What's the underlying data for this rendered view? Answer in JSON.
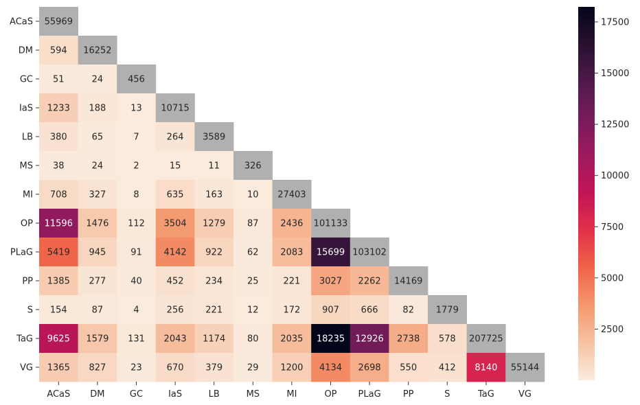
{
  "chart_data": {
    "type": "heatmap",
    "title": "",
    "xlabel": "",
    "ylabel": "",
    "categories": [
      "ACaS",
      "DM",
      "GC",
      "IaS",
      "LB",
      "MS",
      "MI",
      "OP",
      "PLaG",
      "PP",
      "S",
      "TaG",
      "VG"
    ],
    "rows": [
      [
        55969
      ],
      [
        594,
        16252
      ],
      [
        51,
        24,
        456
      ],
      [
        1233,
        188,
        13,
        10715
      ],
      [
        380,
        65,
        7,
        264,
        3589
      ],
      [
        38,
        24,
        2,
        15,
        11,
        326
      ],
      [
        708,
        327,
        8,
        635,
        163,
        10,
        27403
      ],
      [
        11596,
        1476,
        112,
        3504,
        1279,
        87,
        2436,
        101133
      ],
      [
        5419,
        945,
        91,
        4142,
        922,
        62,
        2083,
        15699,
        103102
      ],
      [
        1385,
        277,
        40,
        452,
        234,
        25,
        221,
        3027,
        2262,
        14169
      ],
      [
        154,
        87,
        4,
        256,
        221,
        12,
        172,
        907,
        666,
        82,
        1779
      ],
      [
        9625,
        1579,
        131,
        2043,
        1174,
        80,
        2035,
        18235,
        12926,
        2738,
        578,
        207725
      ],
      [
        1365,
        827,
        23,
        670,
        379,
        29,
        1200,
        4134,
        2698,
        550,
        412,
        8140,
        55144
      ]
    ],
    "diagonal_color": "#b0b0b0",
    "color_scale": {
      "min": 0,
      "max": 18235,
      "colormap": "rocket_r"
    },
    "colorbar_ticks": [
      2500,
      5000,
      7500,
      10000,
      12500,
      15000,
      17500
    ],
    "colorbar_tick_labels": [
      "2500",
      "5000",
      "7500",
      "10000",
      "12500",
      "15000",
      "17500"
    ]
  }
}
